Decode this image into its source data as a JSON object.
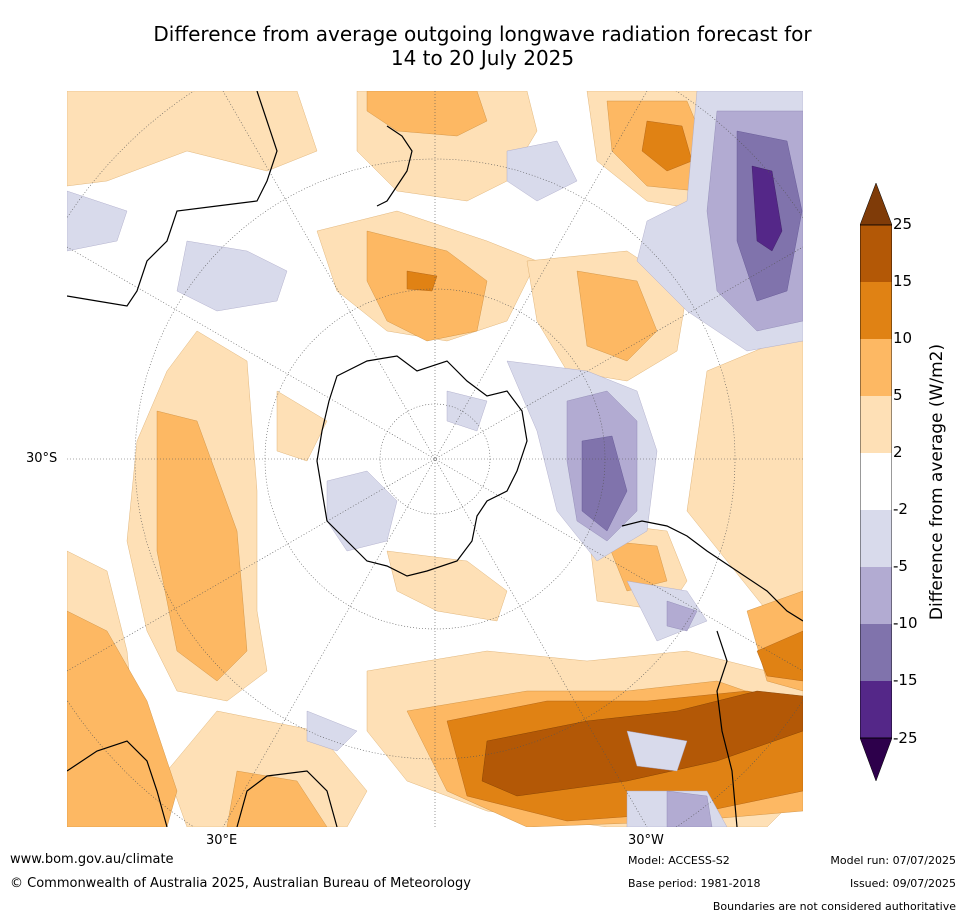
{
  "title_line1": "Difference from average outgoing longwave radiation forecast for",
  "title_line2": "14 to 20 July 2025",
  "axis_labels": {
    "left": "30°S",
    "bottom_left": "30°E",
    "bottom_right": "30°W"
  },
  "colorbar": {
    "title": "Difference from average (W/m2)",
    "ticks": [
      "25",
      "15",
      "10",
      "5",
      "2",
      "-2",
      "-5",
      "-10",
      "-15",
      "-25"
    ],
    "colors": {
      "gt25": "#7f3b08",
      "15_25": "#b35806",
      "10_15": "#e08214",
      "5_10": "#fdb863",
      "2_5": "#fee0b6",
      "m2_2": "#ffffff",
      "m5_m2": "#d8daeb",
      "m10_m5": "#b2abd2",
      "m15_m10": "#8073ac",
      "m25_m15": "#542788",
      "lt_m25": "#2d004b"
    }
  },
  "footer": {
    "url": "www.bom.gov.au/climate",
    "copyright": "© Commonwealth of Australia 2025, Australian Bureau of Meteorology",
    "model": "Model: ACCESS-S2",
    "base_period": "Base period: 1981-2018",
    "model_run": "Model run: 07/07/2025",
    "issued": "Issued: 09/07/2025",
    "disclaimer": "Boundaries are not considered authoritative"
  }
}
